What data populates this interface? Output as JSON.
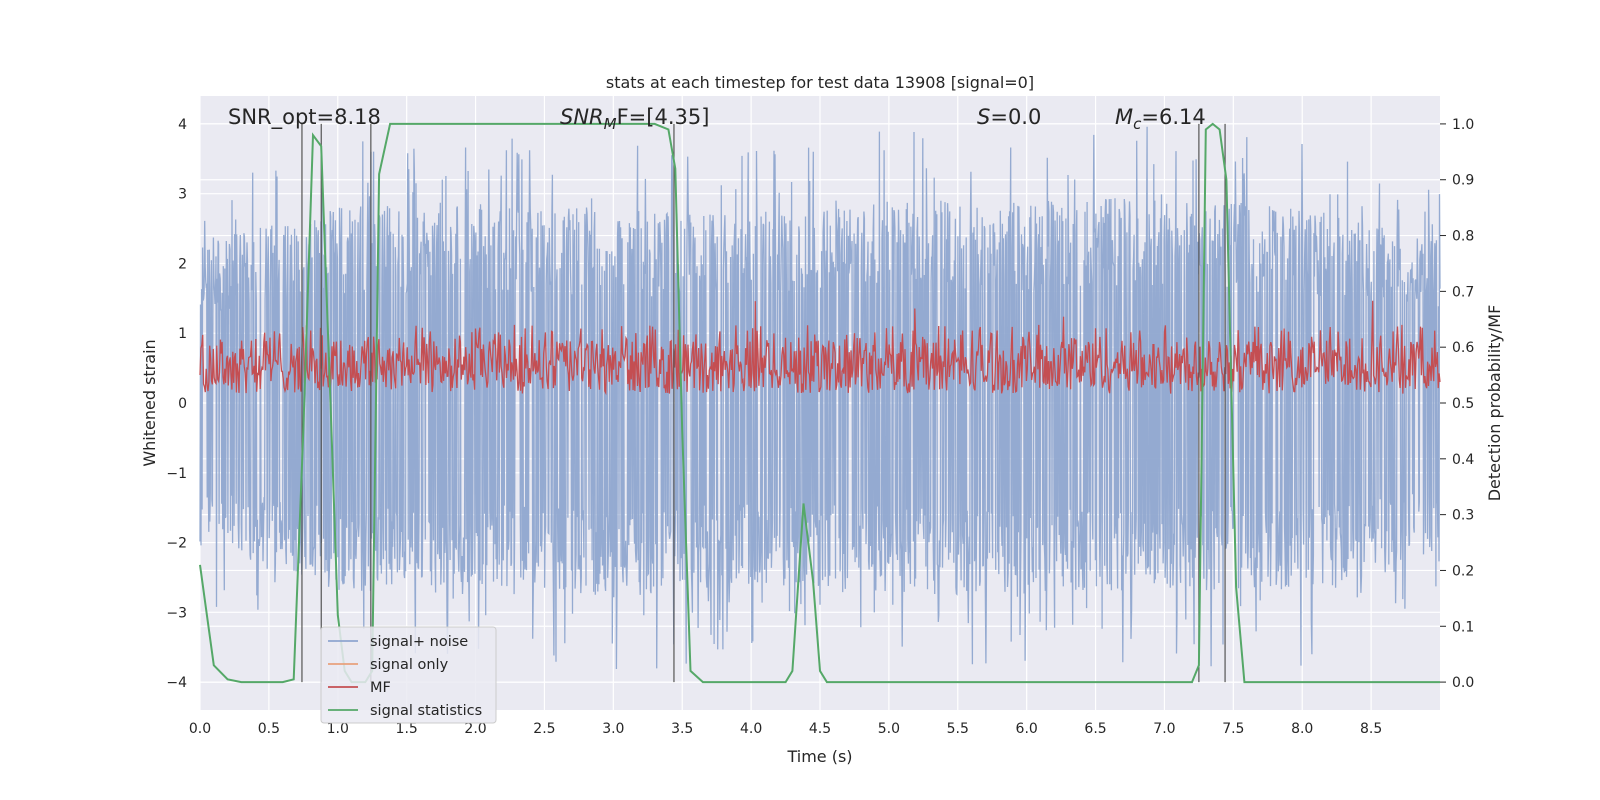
{
  "chart_data": {
    "type": "line",
    "title": "stats at each timestep for test data 13908 [signal=0]",
    "xlabel": "Time (s)",
    "ylabel": "Whitened strain",
    "ylabel_right": "Detection probability/MF",
    "xlim": [
      0,
      9.0
    ],
    "ylim": [
      -4.4,
      4.4
    ],
    "ylim_right": [
      -0.05,
      1.05
    ],
    "xticks": [
      "0.0",
      "0.5",
      "1.0",
      "1.5",
      "2.0",
      "2.5",
      "3.0",
      "3.5",
      "4.0",
      "4.5",
      "5.0",
      "5.5",
      "6.0",
      "6.5",
      "7.0",
      "7.5",
      "8.0",
      "8.5"
    ],
    "xtick_values": [
      0,
      0.5,
      1,
      1.5,
      2,
      2.5,
      3,
      3.5,
      4,
      4.5,
      5,
      5.5,
      6,
      6.5,
      7,
      7.5,
      8,
      8.5
    ],
    "yticks_left": [
      "−4",
      "−3",
      "−2",
      "−1",
      "0",
      "1",
      "2",
      "3",
      "4"
    ],
    "ytick_values_left": [
      -4,
      -3,
      -2,
      -1,
      0,
      1,
      2,
      3,
      4
    ],
    "yticks_right": [
      "0.0",
      "0.1",
      "0.2",
      "0.3",
      "0.4",
      "0.5",
      "0.6",
      "0.7",
      "0.8",
      "0.9",
      "1.0"
    ],
    "ytick_values_right": [
      0,
      0.1,
      0.2,
      0.3,
      0.4,
      0.5,
      0.6,
      0.7,
      0.8,
      0.9,
      1.0
    ],
    "grid": true,
    "legend_placement": "lower-left",
    "annotations": {
      "snr_opt": "SNR_opt=8.18",
      "snr_mf_main": "SNR",
      "snr_mf_sub": "M",
      "snr_mf_rest": "F=[4.35]",
      "s_italic": "S",
      "s_rest": "=0.0",
      "mc_main": "M",
      "mc_sub": "c",
      "mc_rest": "=6.14"
    },
    "series": [
      {
        "name": "signal+ noise",
        "color": "#8fa6cf",
        "axis": "left",
        "description_values": "dense noise, envelope roughly between -3 and 3.5",
        "envelope_upper_approx": [
          [
            0,
            2.3
          ],
          [
            1,
            2.8
          ],
          [
            2,
            2.9
          ],
          [
            3,
            2.8
          ],
          [
            4,
            2.7
          ],
          [
            5,
            2.9
          ],
          [
            6,
            2.9
          ],
          [
            7,
            3.0
          ],
          [
            8,
            2.8
          ],
          [
            9,
            2.4
          ]
        ],
        "envelope_lower_approx": [
          [
            0,
            -2.0
          ],
          [
            1,
            -2.8
          ],
          [
            2,
            -2.6
          ],
          [
            3,
            -2.8
          ],
          [
            4,
            -2.6
          ],
          [
            5,
            -2.7
          ],
          [
            6,
            -2.8
          ],
          [
            7,
            -2.7
          ],
          [
            8,
            -2.7
          ],
          [
            9,
            -2.3
          ]
        ]
      },
      {
        "name": "signal only",
        "color": "#e8a17c",
        "axis": "left",
        "values": []
      },
      {
        "name": "MF",
        "color": "#c44e52",
        "axis": "right",
        "band_approx": [
          0.5,
          0.64
        ]
      },
      {
        "name": "signal statistics",
        "color": "#55a868",
        "axis": "right",
        "points": [
          [
            0.0,
            0.21
          ],
          [
            0.05,
            0.12
          ],
          [
            0.1,
            0.03
          ],
          [
            0.2,
            0.005
          ],
          [
            0.3,
            0.0
          ],
          [
            0.4,
            0.0
          ],
          [
            0.5,
            0.0
          ],
          [
            0.6,
            0.0
          ],
          [
            0.68,
            0.005
          ],
          [
            0.75,
            0.45
          ],
          [
            0.82,
            0.98
          ],
          [
            0.88,
            0.96
          ],
          [
            0.95,
            0.48
          ],
          [
            1.0,
            0.12
          ],
          [
            1.05,
            0.02
          ],
          [
            1.1,
            0.0
          ],
          [
            1.15,
            0.0
          ],
          [
            1.2,
            0.0
          ],
          [
            1.25,
            0.02
          ],
          [
            1.3,
            0.91
          ],
          [
            1.38,
            1.0
          ],
          [
            1.5,
            1.0
          ],
          [
            2.0,
            1.0
          ],
          [
            2.5,
            1.0
          ],
          [
            3.0,
            1.0
          ],
          [
            3.3,
            1.0
          ],
          [
            3.4,
            0.99
          ],
          [
            3.45,
            0.92
          ],
          [
            3.5,
            0.45
          ],
          [
            3.56,
            0.02
          ],
          [
            3.65,
            0.0
          ],
          [
            4.0,
            0.0
          ],
          [
            4.25,
            0.0
          ],
          [
            4.3,
            0.02
          ],
          [
            4.38,
            0.32
          ],
          [
            4.45,
            0.18
          ],
          [
            4.5,
            0.02
          ],
          [
            4.55,
            0.0
          ],
          [
            5.0,
            0.0
          ],
          [
            6.0,
            0.0
          ],
          [
            7.0,
            0.0
          ],
          [
            7.2,
            0.0
          ],
          [
            7.25,
            0.03
          ],
          [
            7.3,
            0.99
          ],
          [
            7.35,
            1.0
          ],
          [
            7.4,
            0.99
          ],
          [
            7.45,
            0.9
          ],
          [
            7.52,
            0.17
          ],
          [
            7.58,
            0.0
          ],
          [
            8.0,
            0.0
          ],
          [
            8.5,
            0.0
          ],
          [
            9.0,
            0.0
          ]
        ]
      }
    ],
    "vertical_markers_s": [
      0.74,
      0.88,
      1.24,
      3.44,
      7.25,
      7.44
    ]
  }
}
